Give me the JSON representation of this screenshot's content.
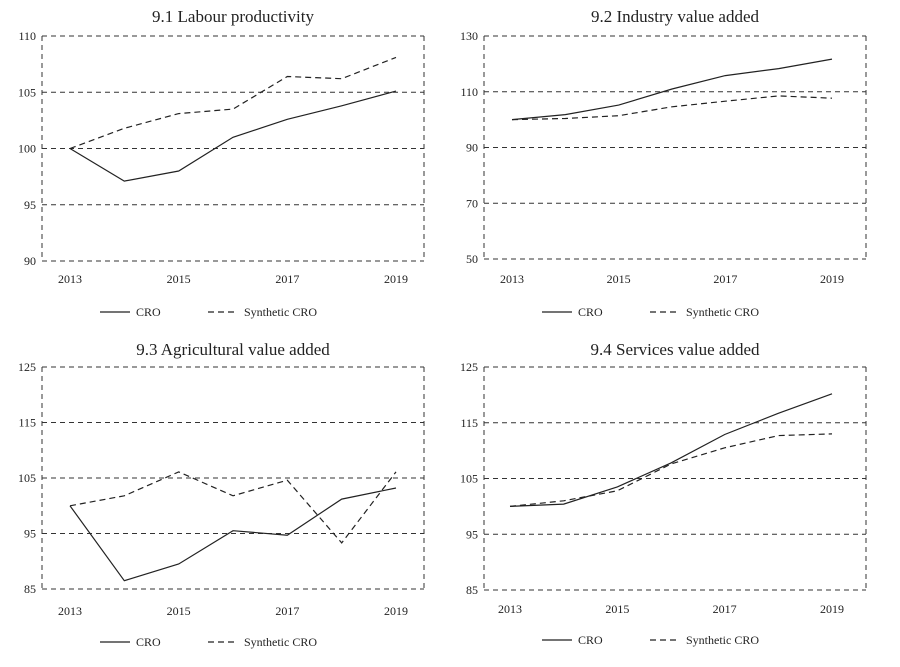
{
  "chart_data": [
    {
      "type": "line",
      "title": "9.1 Labour productivity",
      "x": [
        2013,
        2014,
        2015,
        2016,
        2017,
        2018,
        2019
      ],
      "xticks": [
        "2013",
        "2015",
        "2017",
        "2019"
      ],
      "ylim": [
        90,
        110
      ],
      "yticks": [
        "110",
        "105",
        "100",
        "95",
        "90"
      ],
      "grid": true,
      "legend_placement": "bottom",
      "series": [
        {
          "name": "CRO",
          "style": "solid",
          "values": [
            100,
            97.1,
            98.0,
            101.0,
            102.6,
            103.8,
            105.1
          ]
        },
        {
          "name": "Synthetic CRO",
          "style": "dashed",
          "values": [
            100,
            101.8,
            103.1,
            103.5,
            106.4,
            106.2,
            108.1
          ]
        }
      ]
    },
    {
      "type": "line",
      "title": "9.2 Industry value added",
      "x": [
        2013,
        2014,
        2015,
        2016,
        2017,
        2018,
        2019
      ],
      "xticks": [
        "2013",
        "2015",
        "2017",
        "2019"
      ],
      "ylim": [
        50,
        130
      ],
      "yticks": [
        "130",
        "110",
        "90",
        "70",
        "50"
      ],
      "grid": true,
      "legend_placement": "bottom",
      "series": [
        {
          "name": "CRO",
          "style": "solid",
          "values": [
            100,
            101.8,
            105.2,
            111.0,
            115.8,
            118.3,
            121.7
          ]
        },
        {
          "name": "Synthetic CRO",
          "style": "dashed",
          "values": [
            100,
            100.4,
            101.4,
            104.6,
            106.6,
            108.5,
            107.7
          ]
        }
      ]
    },
    {
      "type": "line",
      "title": "9.3 Agricultural value added",
      "x": [
        2013,
        2014,
        2015,
        2016,
        2017,
        2018,
        2019
      ],
      "xticks": [
        "2013",
        "2015",
        "2017",
        "2019"
      ],
      "ylim": [
        85,
        125
      ],
      "yticks": [
        "125",
        "115",
        "105",
        "95",
        "85"
      ],
      "grid": true,
      "legend_placement": "bottom",
      "series": [
        {
          "name": "CRO",
          "style": "solid",
          "values": [
            100,
            86.5,
            89.5,
            95.5,
            94.7,
            101.2,
            103.2
          ]
        },
        {
          "name": "Synthetic CRO",
          "style": "dashed",
          "values": [
            100,
            101.8,
            106.1,
            101.8,
            104.6,
            93.3,
            106.1
          ]
        }
      ]
    },
    {
      "type": "line",
      "title": "9.4 Services value added",
      "x": [
        2013,
        2014,
        2015,
        2016,
        2017,
        2018,
        2019
      ],
      "xticks": [
        "2013",
        "2015",
        "2017",
        "2019"
      ],
      "ylim": [
        85,
        125
      ],
      "yticks": [
        "125",
        "115",
        "105",
        "95",
        "85"
      ],
      "grid": true,
      "legend_placement": "bottom",
      "series": [
        {
          "name": "CRO",
          "style": "solid",
          "values": [
            100,
            100.4,
            103.5,
            107.8,
            112.9,
            116.7,
            120.2
          ]
        },
        {
          "name": "Synthetic CRO",
          "style": "dashed",
          "values": [
            100,
            101.0,
            102.8,
            107.6,
            110.5,
            112.7,
            113.0
          ]
        }
      ]
    }
  ]
}
